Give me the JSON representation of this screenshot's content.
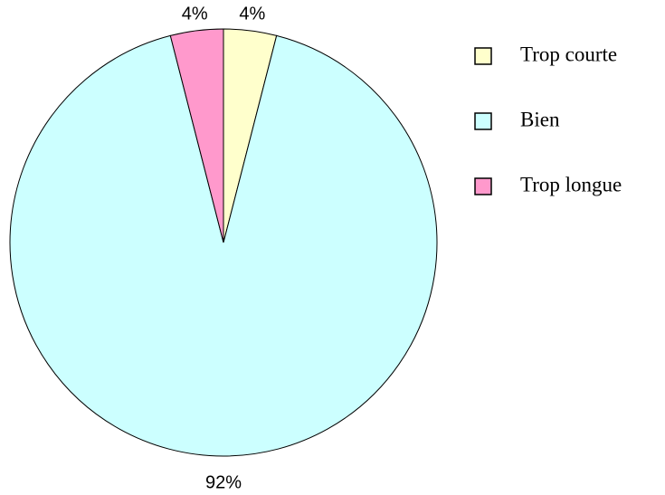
{
  "chart_data": {
    "type": "pie",
    "categories": [
      "Trop courte",
      "Bien",
      "Trop longue"
    ],
    "values": [
      4,
      92,
      4
    ],
    "value_labels": [
      "4%",
      "92%",
      "4%"
    ],
    "colors": [
      "#ffffcc",
      "#ccffff",
      "#ff99cc"
    ],
    "legend": "right"
  }
}
